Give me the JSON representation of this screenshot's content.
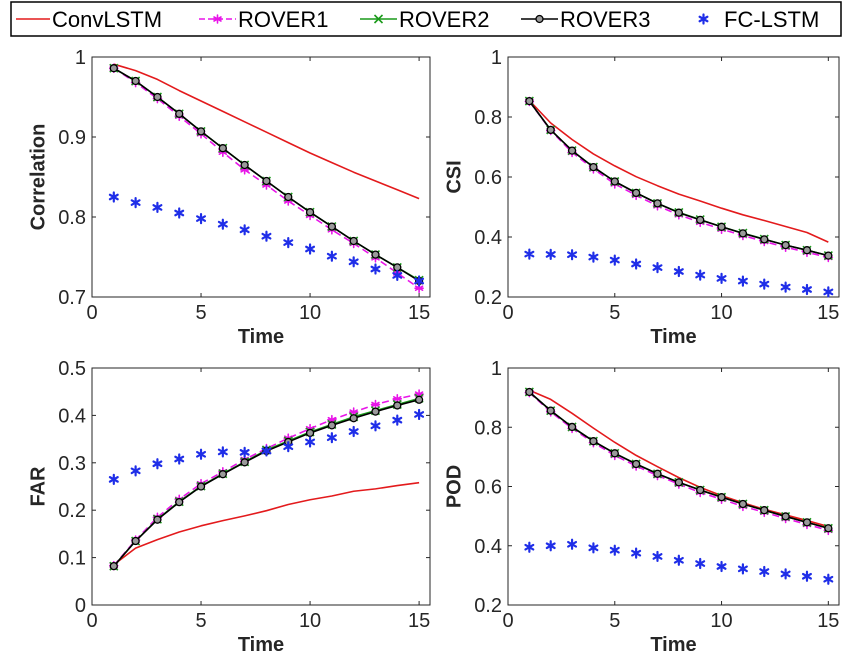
{
  "legend": {
    "entries": [
      {
        "name": "ConvLSTM",
        "color": "#e31a1c",
        "marker": "none",
        "line": "solid"
      },
      {
        "name": "ROVER1",
        "color": "#e815e8",
        "marker": "star",
        "line": "dashed"
      },
      {
        "name": "ROVER2",
        "color": "#1a9a1a",
        "marker": "x",
        "line": "solid"
      },
      {
        "name": "ROVER3",
        "color": "#000000",
        "marker": "circle",
        "line": "solid"
      },
      {
        "name": "FC-LSTM",
        "color": "#1f2ee8",
        "marker": "asterisk",
        "line": "none"
      }
    ],
    "placement": "top"
  },
  "chart_data": [
    {
      "type": "line",
      "xlabel": "Time",
      "ylabel": "Correlation",
      "xlim": [
        0,
        15.5
      ],
      "ylim": [
        0.7,
        1.0
      ],
      "xticks": [
        0,
        5,
        10,
        15
      ],
      "yticks": [
        0.7,
        0.8,
        0.9,
        1
      ],
      "ytick_labels": [
        "0.7",
        "0.8",
        "0.9",
        "1"
      ],
      "grid": false,
      "series": [
        {
          "name": "ConvLSTM",
          "x": [
            1,
            2,
            3,
            4,
            5,
            6,
            7,
            8,
            9,
            10,
            11,
            12,
            13,
            14,
            15
          ],
          "values": [
            0.991,
            0.983,
            0.972,
            0.958,
            0.945,
            0.932,
            0.919,
            0.906,
            0.893,
            0.88,
            0.868,
            0.856,
            0.845,
            0.834,
            0.823
          ]
        },
        {
          "name": "ROVER1",
          "x": [
            1,
            2,
            3,
            4,
            5,
            6,
            7,
            8,
            9,
            10,
            11,
            12,
            13,
            14,
            15
          ],
          "values": [
            0.986,
            0.968,
            0.948,
            0.926,
            0.904,
            0.881,
            0.859,
            0.84,
            0.82,
            0.802,
            0.784,
            0.767,
            0.749,
            0.73,
            0.711
          ]
        },
        {
          "name": "ROVER2",
          "x": [
            1,
            2,
            3,
            4,
            5,
            6,
            7,
            8,
            9,
            10,
            11,
            12,
            13,
            14,
            15
          ],
          "values": [
            0.986,
            0.97,
            0.95,
            0.929,
            0.907,
            0.886,
            0.865,
            0.845,
            0.825,
            0.806,
            0.788,
            0.77,
            0.753,
            0.737,
            0.721
          ]
        },
        {
          "name": "ROVER3",
          "x": [
            1,
            2,
            3,
            4,
            5,
            6,
            7,
            8,
            9,
            10,
            11,
            12,
            13,
            14,
            15
          ],
          "values": [
            0.986,
            0.97,
            0.95,
            0.929,
            0.907,
            0.886,
            0.865,
            0.845,
            0.825,
            0.806,
            0.788,
            0.77,
            0.753,
            0.737,
            0.72
          ]
        },
        {
          "name": "FC-LSTM",
          "x": [
            1,
            2,
            3,
            4,
            5,
            6,
            7,
            8,
            9,
            10,
            11,
            12,
            13,
            14,
            15
          ],
          "values": [
            0.825,
            0.818,
            0.812,
            0.805,
            0.798,
            0.791,
            0.784,
            0.776,
            0.768,
            0.76,
            0.751,
            0.744,
            0.735,
            0.727,
            0.72
          ]
        }
      ]
    },
    {
      "type": "line",
      "xlabel": "Time",
      "ylabel": "CSI",
      "xlim": [
        0,
        15.5
      ],
      "ylim": [
        0.2,
        1.0
      ],
      "xticks": [
        0,
        5,
        10,
        15
      ],
      "yticks": [
        0.2,
        0.4,
        0.6,
        0.8,
        1
      ],
      "ytick_labels": [
        "0.2",
        "0.4",
        "0.6",
        "0.8",
        "1"
      ],
      "grid": false,
      "series": [
        {
          "name": "ConvLSTM",
          "x": [
            1,
            2,
            3,
            4,
            5,
            6,
            7,
            8,
            9,
            10,
            11,
            12,
            13,
            14,
            15
          ],
          "values": [
            0.855,
            0.78,
            0.725,
            0.677,
            0.637,
            0.601,
            0.571,
            0.543,
            0.52,
            0.496,
            0.474,
            0.455,
            0.435,
            0.415,
            0.383
          ]
        },
        {
          "name": "ROVER1",
          "x": [
            1,
            2,
            3,
            4,
            5,
            6,
            7,
            8,
            9,
            10,
            11,
            12,
            13,
            14,
            15
          ],
          "values": [
            0.852,
            0.755,
            0.682,
            0.627,
            0.577,
            0.539,
            0.504,
            0.474,
            0.449,
            0.426,
            0.405,
            0.385,
            0.366,
            0.349,
            0.332
          ]
        },
        {
          "name": "ROVER2",
          "x": [
            1,
            2,
            3,
            4,
            5,
            6,
            7,
            8,
            9,
            10,
            11,
            12,
            13,
            14,
            15
          ],
          "values": [
            0.853,
            0.757,
            0.688,
            0.633,
            0.585,
            0.547,
            0.512,
            0.482,
            0.458,
            0.434,
            0.413,
            0.393,
            0.373,
            0.356,
            0.338
          ]
        },
        {
          "name": "ROVER3",
          "x": [
            1,
            2,
            3,
            4,
            5,
            6,
            7,
            8,
            9,
            10,
            11,
            12,
            13,
            14,
            15
          ],
          "values": [
            0.853,
            0.757,
            0.688,
            0.633,
            0.585,
            0.547,
            0.512,
            0.481,
            0.457,
            0.434,
            0.412,
            0.392,
            0.373,
            0.356,
            0.338
          ]
        },
        {
          "name": "FC-LSTM",
          "x": [
            1,
            2,
            3,
            4,
            5,
            6,
            7,
            8,
            9,
            10,
            11,
            12,
            13,
            14,
            15
          ],
          "values": [
            0.343,
            0.342,
            0.341,
            0.333,
            0.323,
            0.31,
            0.298,
            0.285,
            0.273,
            0.262,
            0.253,
            0.243,
            0.233,
            0.225,
            0.217
          ]
        }
      ]
    },
    {
      "type": "line",
      "xlabel": "Time",
      "ylabel": "FAR",
      "xlim": [
        0,
        15.5
      ],
      "ylim": [
        0,
        0.5
      ],
      "xticks": [
        0,
        5,
        10,
        15
      ],
      "yticks": [
        0,
        0.1,
        0.2,
        0.3,
        0.4,
        0.5
      ],
      "ytick_labels": [
        "0",
        "0.1",
        "0.2",
        "0.3",
        "0.4",
        "0.5"
      ],
      "grid": false,
      "series": [
        {
          "name": "ConvLSTM",
          "x": [
            1,
            2,
            3,
            4,
            5,
            6,
            7,
            8,
            9,
            10,
            11,
            12,
            13,
            14,
            15
          ],
          "values": [
            0.085,
            0.12,
            0.138,
            0.154,
            0.167,
            0.178,
            0.188,
            0.199,
            0.212,
            0.222,
            0.23,
            0.24,
            0.245,
            0.252,
            0.258
          ]
        },
        {
          "name": "ROVER1",
          "x": [
            1,
            2,
            3,
            4,
            5,
            6,
            7,
            8,
            9,
            10,
            11,
            12,
            13,
            14,
            15
          ],
          "values": [
            0.083,
            0.137,
            0.185,
            0.223,
            0.256,
            0.281,
            0.307,
            0.33,
            0.352,
            0.372,
            0.391,
            0.407,
            0.423,
            0.435,
            0.445
          ]
        },
        {
          "name": "ROVER2",
          "x": [
            1,
            2,
            3,
            4,
            5,
            6,
            7,
            8,
            9,
            10,
            11,
            12,
            13,
            14,
            15
          ],
          "values": [
            0.082,
            0.135,
            0.181,
            0.218,
            0.251,
            0.277,
            0.302,
            0.327,
            0.346,
            0.365,
            0.381,
            0.397,
            0.41,
            0.423,
            0.436
          ]
        },
        {
          "name": "ROVER3",
          "x": [
            1,
            2,
            3,
            4,
            5,
            6,
            7,
            8,
            9,
            10,
            11,
            12,
            13,
            14,
            15
          ],
          "values": [
            0.082,
            0.135,
            0.18,
            0.217,
            0.25,
            0.276,
            0.301,
            0.325,
            0.344,
            0.363,
            0.379,
            0.394,
            0.408,
            0.421,
            0.433
          ]
        },
        {
          "name": "FC-LSTM",
          "x": [
            1,
            2,
            3,
            4,
            5,
            6,
            7,
            8,
            9,
            10,
            11,
            12,
            13,
            14,
            15
          ],
          "values": [
            0.265,
            0.283,
            0.298,
            0.308,
            0.318,
            0.323,
            0.322,
            0.325,
            0.334,
            0.344,
            0.353,
            0.366,
            0.378,
            0.39,
            0.402
          ]
        }
      ]
    },
    {
      "type": "line",
      "xlabel": "Time",
      "ylabel": "POD",
      "xlim": [
        0,
        15.5
      ],
      "ylim": [
        0.2,
        1.0
      ],
      "xticks": [
        0,
        5,
        10,
        15
      ],
      "yticks": [
        0.2,
        0.4,
        0.6,
        0.8,
        1
      ],
      "ytick_labels": [
        "0.2",
        "0.4",
        "0.6",
        "0.8",
        "1"
      ],
      "grid": false,
      "series": [
        {
          "name": "ConvLSTM",
          "x": [
            1,
            2,
            3,
            4,
            5,
            6,
            7,
            8,
            9,
            10,
            11,
            12,
            13,
            14,
            15
          ],
          "values": [
            0.925,
            0.894,
            0.847,
            0.797,
            0.749,
            0.705,
            0.667,
            0.63,
            0.597,
            0.569,
            0.545,
            0.523,
            0.504,
            0.485,
            0.465
          ]
        },
        {
          "name": "ROVER1",
          "x": [
            1,
            2,
            3,
            4,
            5,
            6,
            7,
            8,
            9,
            10,
            11,
            12,
            13,
            14,
            15
          ],
          "values": [
            0.917,
            0.852,
            0.796,
            0.748,
            0.705,
            0.669,
            0.637,
            0.608,
            0.58,
            0.557,
            0.533,
            0.513,
            0.492,
            0.472,
            0.452
          ]
        },
        {
          "name": "ROVER2",
          "x": [
            1,
            2,
            3,
            4,
            5,
            6,
            7,
            8,
            9,
            10,
            11,
            12,
            13,
            14,
            15
          ],
          "values": [
            0.919,
            0.856,
            0.801,
            0.753,
            0.712,
            0.676,
            0.643,
            0.614,
            0.588,
            0.564,
            0.541,
            0.52,
            0.499,
            0.479,
            0.459
          ]
        },
        {
          "name": "ROVER3",
          "x": [
            1,
            2,
            3,
            4,
            5,
            6,
            7,
            8,
            9,
            10,
            11,
            12,
            13,
            14,
            15
          ],
          "values": [
            0.919,
            0.856,
            0.801,
            0.753,
            0.712,
            0.676,
            0.643,
            0.614,
            0.588,
            0.564,
            0.541,
            0.52,
            0.499,
            0.479,
            0.459
          ]
        },
        {
          "name": "FC-LSTM",
          "x": [
            1,
            2,
            3,
            4,
            5,
            6,
            7,
            8,
            9,
            10,
            11,
            12,
            13,
            14,
            15
          ],
          "values": [
            0.395,
            0.4,
            0.405,
            0.393,
            0.385,
            0.375,
            0.364,
            0.351,
            0.34,
            0.33,
            0.322,
            0.313,
            0.305,
            0.297,
            0.287
          ]
        }
      ]
    }
  ]
}
